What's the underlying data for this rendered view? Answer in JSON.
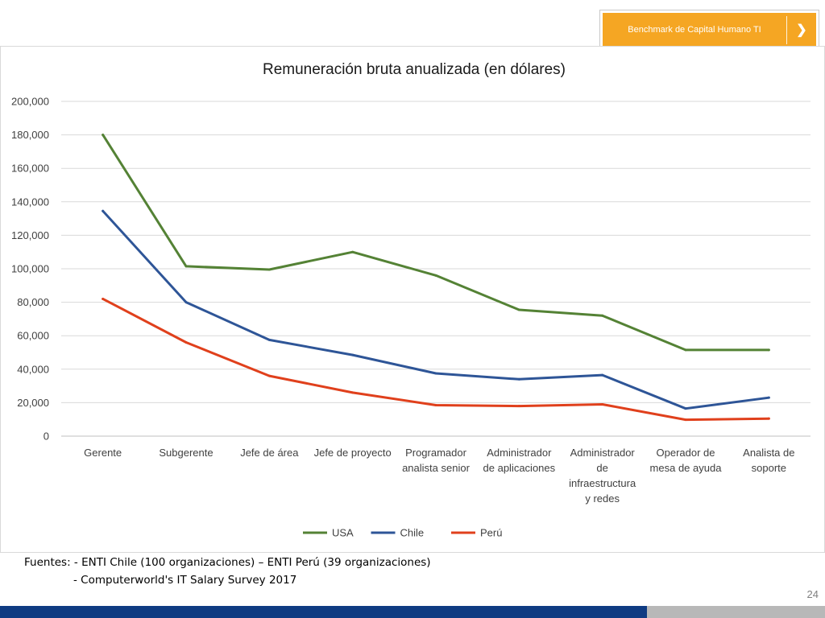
{
  "header": {
    "button_label": "Benchmark de Capital Humano TI",
    "arrow_icon": "chevron-right-icon",
    "accent_color": "#f5a623"
  },
  "chart_data": {
    "type": "line",
    "title": "Remuneración bruta anualizada (en dólares)",
    "categories": [
      [
        "Gerente"
      ],
      [
        "Subgerente"
      ],
      [
        "Jefe de área"
      ],
      [
        "Jefe de proyecto"
      ],
      [
        "Programador",
        "analista senior"
      ],
      [
        "Administrador",
        "de aplicaciones"
      ],
      [
        "Administrador",
        "de",
        "infraestructura",
        "y redes"
      ],
      [
        "Operador de",
        "mesa de ayuda"
      ],
      [
        "Analista de",
        "soporte"
      ]
    ],
    "ylim": [
      0,
      200000
    ],
    "yticks": [
      0,
      20000,
      40000,
      60000,
      80000,
      100000,
      120000,
      140000,
      160000,
      180000,
      200000
    ],
    "ytick_labels": [
      "0",
      "20,000",
      "40,000",
      "60,000",
      "80,000",
      "100,000",
      "120,000",
      "140,000",
      "160,000",
      "180,000",
      "200,000"
    ],
    "grid": true,
    "legend_position": "bottom",
    "series": [
      {
        "name": "USA",
        "color": "#548235",
        "values": [
          180000,
          101500,
          99500,
          110000,
          96000,
          75500,
          72000,
          51500,
          51500
        ]
      },
      {
        "name": "Chile",
        "color": "#2e5597",
        "values": [
          134500,
          80000,
          57500,
          48500,
          37500,
          34000,
          36500,
          16500,
          23000
        ]
      },
      {
        "name": "Perú",
        "color": "#e0401c",
        "values": [
          82000,
          56000,
          36000,
          26000,
          18500,
          18000,
          19000,
          9800,
          10500
        ]
      }
    ]
  },
  "sources": {
    "line1": "Fuentes: - ENTI Chile (100 organizaciones) – ENTI Perú (39 organizaciones)",
    "line2": "- Computerworld's IT Salary Survey 2017"
  },
  "page_number": "24",
  "footer": {
    "blue": "#0f3b82",
    "gray": "#b8b8b8"
  }
}
